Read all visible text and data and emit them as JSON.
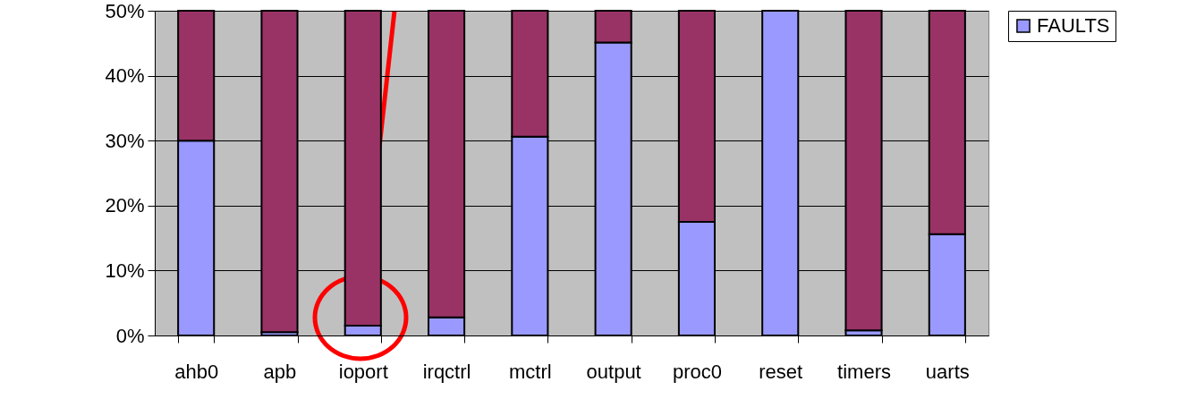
{
  "chart_data": {
    "type": "bar",
    "stacked": true,
    "categories": [
      "ahb0",
      "apb",
      "ioport",
      "irqctrl",
      "mctrl",
      "output",
      "proc0",
      "reset",
      "timers",
      "uarts"
    ],
    "series": [
      {
        "name": "FAULTS",
        "color": "#9999ff",
        "values": [
          30,
          0.5,
          1.5,
          2.8,
          30.6,
          45.1,
          17.5,
          50,
          0.8,
          15.6
        ]
      },
      {
        "color": "#993366",
        "values": [
          20,
          49.5,
          48.5,
          47.2,
          19.4,
          4.9,
          32.5,
          null,
          49.2,
          34.4
        ]
      }
    ],
    "ylim": [
      0,
      50
    ],
    "yticks": [
      {
        "value": 0,
        "label": "0%"
      },
      {
        "value": 10,
        "label": "10%"
      },
      {
        "value": 20,
        "label": "20%"
      },
      {
        "value": 30,
        "label": "30%"
      },
      {
        "value": 40,
        "label": "40%"
      },
      {
        "value": 50,
        "label": "50%"
      }
    ],
    "grid": "y",
    "legend": "top right"
  }
}
